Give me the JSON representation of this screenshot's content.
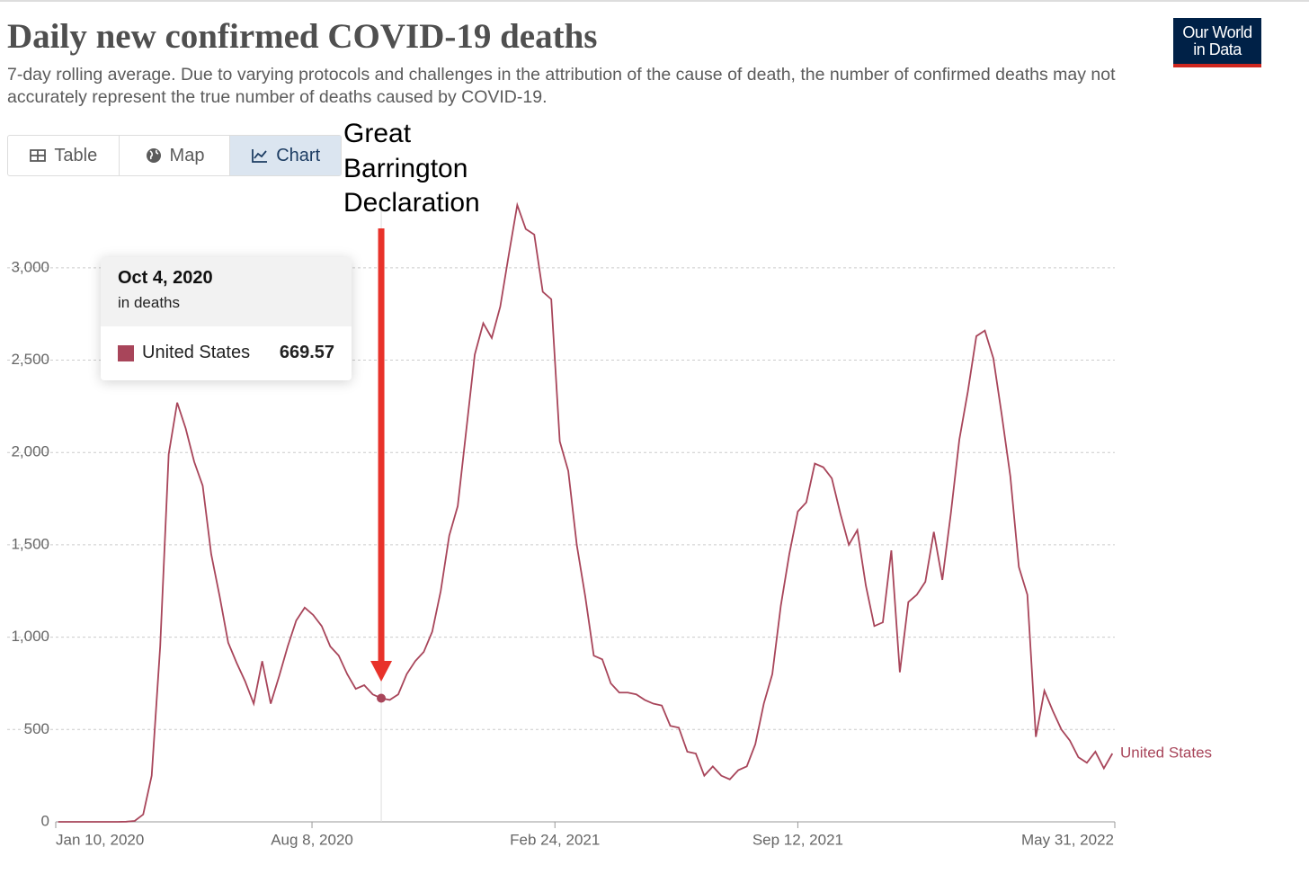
{
  "header": {
    "title": "Daily new confirmed COVID-19 deaths",
    "subtitle": "7-day rolling average. Due to varying protocols and challenges in the attribution of the cause of death, the number of confirmed deaths may not accurately represent the true number of deaths caused by COVID-19.",
    "tabs": [
      "Table",
      "Map",
      "Chart"
    ],
    "active_tab": 2,
    "logo": [
      "Our World",
      "in Data"
    ]
  },
  "chart_data": {
    "type": "line",
    "x": [
      "2020-01-12",
      "2020-01-19",
      "2020-01-26",
      "2020-02-02",
      "2020-02-09",
      "2020-02-16",
      "2020-02-23",
      "2020-03-01",
      "2020-03-08",
      "2020-03-15",
      "2020-03-22",
      "2020-03-29",
      "2020-04-05",
      "2020-04-12",
      "2020-04-19",
      "2020-04-26",
      "2020-05-03",
      "2020-05-10",
      "2020-05-17",
      "2020-05-24",
      "2020-05-31",
      "2020-06-07",
      "2020-06-14",
      "2020-06-21",
      "2020-06-28",
      "2020-07-05",
      "2020-07-12",
      "2020-07-19",
      "2020-07-26",
      "2020-08-02",
      "2020-08-09",
      "2020-08-16",
      "2020-08-23",
      "2020-08-30",
      "2020-09-06",
      "2020-09-13",
      "2020-09-20",
      "2020-09-27",
      "2020-10-04",
      "2020-10-11",
      "2020-10-18",
      "2020-10-25",
      "2020-11-01",
      "2020-11-08",
      "2020-11-15",
      "2020-11-22",
      "2020-11-29",
      "2020-12-06",
      "2020-12-13",
      "2020-12-20",
      "2020-12-27",
      "2021-01-03",
      "2021-01-10",
      "2021-01-17",
      "2021-01-24",
      "2021-01-31",
      "2021-02-07",
      "2021-02-14",
      "2021-02-21",
      "2021-02-28",
      "2021-03-07",
      "2021-03-14",
      "2021-03-21",
      "2021-03-28",
      "2021-04-04",
      "2021-04-11",
      "2021-04-18",
      "2021-04-25",
      "2021-05-02",
      "2021-05-09",
      "2021-05-16",
      "2021-05-23",
      "2021-05-30",
      "2021-06-06",
      "2021-06-13",
      "2021-06-20",
      "2021-06-27",
      "2021-07-04",
      "2021-07-11",
      "2021-07-18",
      "2021-07-25",
      "2021-08-01",
      "2021-08-08",
      "2021-08-15",
      "2021-08-22",
      "2021-08-29",
      "2021-09-05",
      "2021-09-12",
      "2021-09-19",
      "2021-09-26",
      "2021-10-03",
      "2021-10-10",
      "2021-10-17",
      "2021-10-24",
      "2021-10-31",
      "2021-11-07",
      "2021-11-14",
      "2021-11-21",
      "2021-11-28",
      "2021-12-05",
      "2021-12-12",
      "2021-12-19",
      "2021-12-26",
      "2022-01-02",
      "2022-01-09",
      "2022-01-16",
      "2022-01-23",
      "2022-01-30",
      "2022-02-06",
      "2022-02-13",
      "2022-02-20",
      "2022-02-27",
      "2022-03-06",
      "2022-03-13",
      "2022-03-20",
      "2022-03-27",
      "2022-04-03",
      "2022-04-10",
      "2022-04-17",
      "2022-04-24",
      "2022-05-01",
      "2022-05-08",
      "2022-05-15",
      "2022-05-22",
      "2022-05-29"
    ],
    "series": [
      {
        "name": "United States",
        "color": "#a8455a",
        "values": [
          0,
          0,
          0,
          0,
          0,
          0,
          0,
          0,
          1,
          5,
          40,
          250,
          950,
          1990,
          2270,
          2130,
          1950,
          1820,
          1450,
          1220,
          970,
          860,
          760,
          640,
          870,
          640,
          790,
          950,
          1090,
          1160,
          1120,
          1060,
          950,
          900,
          800,
          720,
          740,
          690,
          669.57,
          660,
          690,
          800,
          870,
          920,
          1030,
          1250,
          1550,
          1710,
          2120,
          2530,
          2700,
          2620,
          2790,
          3070,
          3340,
          3210,
          3180,
          2870,
          2830,
          2060,
          1900,
          1500,
          1220,
          900,
          880,
          750,
          700,
          700,
          690,
          660,
          640,
          630,
          520,
          510,
          380,
          370,
          250,
          300,
          250,
          230,
          280,
          300,
          420,
          640,
          800,
          1170,
          1450,
          1680,
          1730,
          1940,
          1920,
          1860,
          1670,
          1500,
          1580,
          1280,
          1060,
          1080,
          1470,
          810,
          1190,
          1230,
          1300,
          1570,
          1310,
          1670,
          2070,
          2330,
          2630,
          2660,
          2510,
          2200,
          1870,
          1380,
          1230,
          460,
          710,
          600,
          500,
          440,
          350,
          320,
          380,
          290,
          370
        ]
      }
    ],
    "xlim": [
      "2020-01-10",
      "2022-05-31"
    ],
    "xticks": [
      {
        "value": "2020-01-10",
        "label": "Jan 10, 2020"
      },
      {
        "value": "2020-08-08",
        "label": "Aug 8, 2020"
      },
      {
        "value": "2021-02-24",
        "label": "Feb 24, 2021"
      },
      {
        "value": "2021-09-12",
        "label": "Sep 12, 2021"
      },
      {
        "value": "2022-05-31",
        "label": "May 31, 2022"
      }
    ],
    "ylim": [
      0,
      3340
    ],
    "yticks": [
      0,
      500,
      {
        "value": 1000,
        "label": "1,000"
      },
      {
        "value": 1500,
        "label": "1,500"
      },
      {
        "value": 2000,
        "label": "2,000"
      },
      {
        "value": 2500,
        "label": "2,500"
      },
      {
        "value": 3000,
        "label": "3,000"
      }
    ],
    "grid": true,
    "annotation": {
      "text": "Great Barrington Declaration",
      "x": "2020-10-04",
      "color": "#e8322a"
    },
    "tooltip": {
      "x": "2020-10-04",
      "date_label": "Oct 4, 2020",
      "unit": "in deaths"
    }
  }
}
